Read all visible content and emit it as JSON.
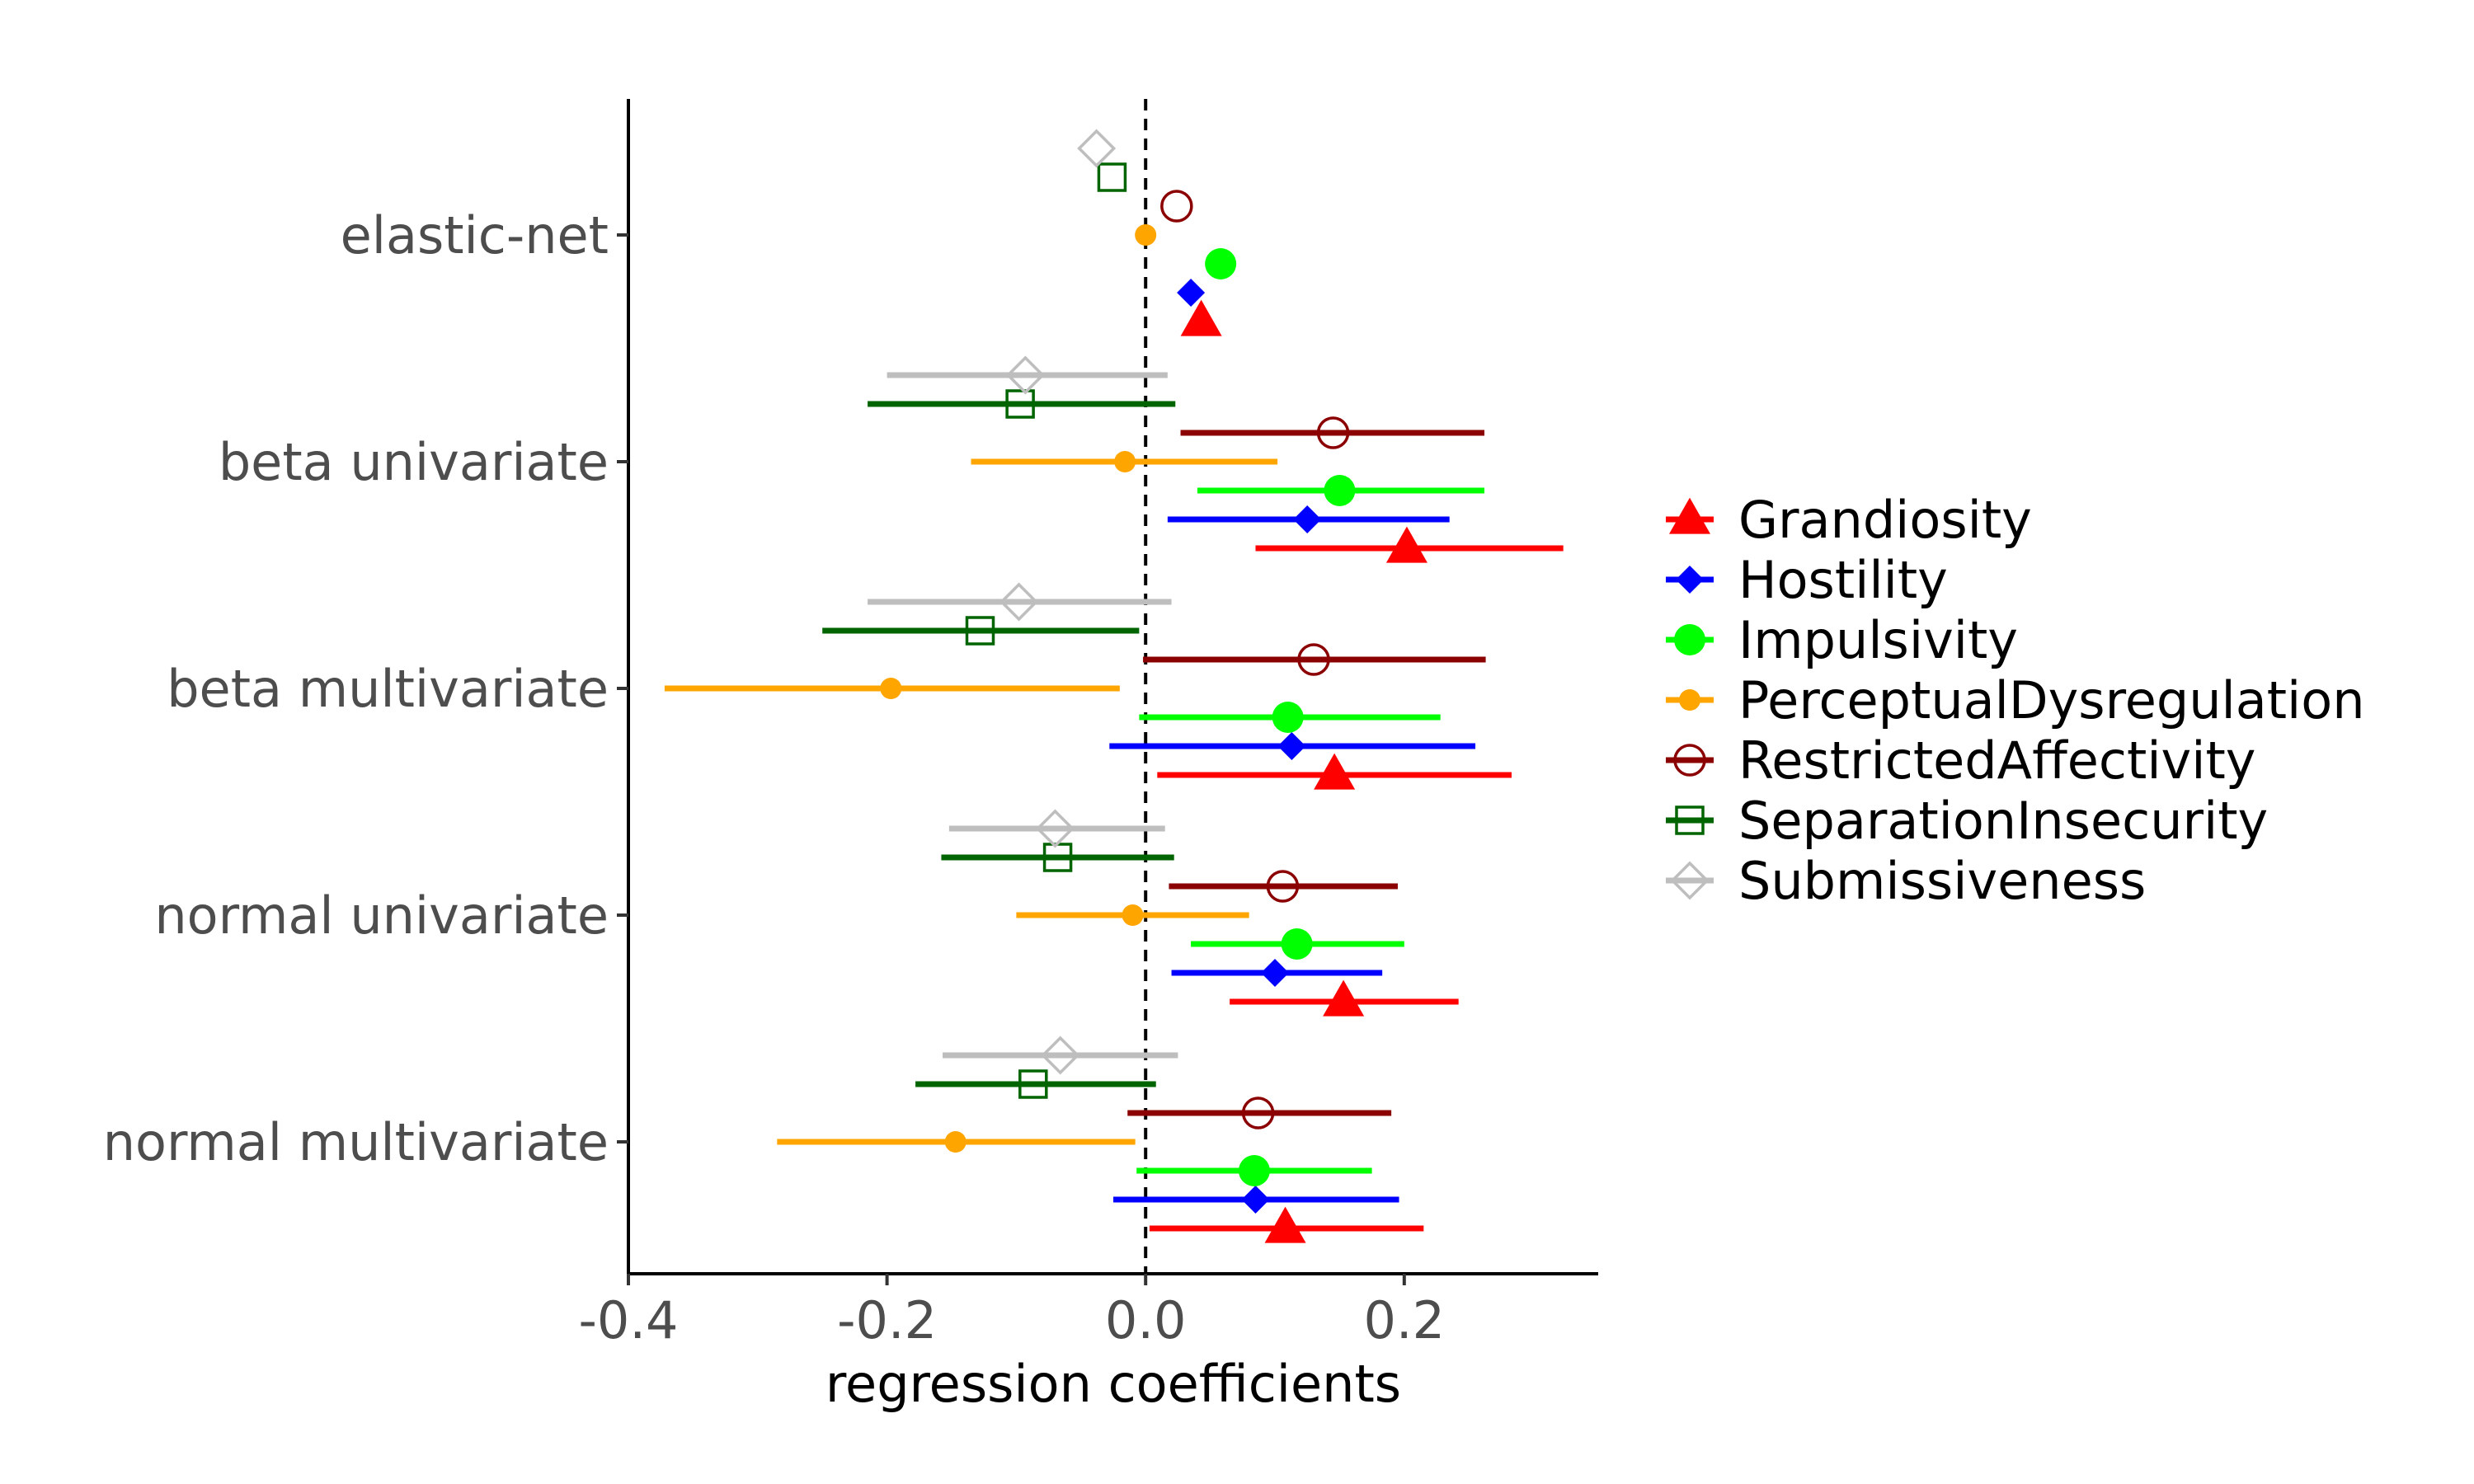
{
  "chart_data": {
    "type": "forest",
    "xlabel": "regression coefficients",
    "ylabel": "",
    "xlim": [
      -0.4,
      0.35
    ],
    "xticks": [
      -0.4,
      -0.2,
      0.0,
      0.2
    ],
    "xtick_labels": [
      "-0.4",
      "-0.2",
      "0.0",
      "0.2"
    ],
    "reference_line": 0,
    "grid": false,
    "legend_position": "right",
    "categories": [
      "elastic-net",
      "beta univariate",
      "beta multivariate",
      "normal univariate",
      "normal multivariate"
    ],
    "series": [
      {
        "name": "Grandiosity",
        "color": "#ff0000",
        "marker": "triangle",
        "estimates": [
          0.043,
          0.202,
          0.146,
          0.153,
          0.108
        ],
        "lower": [
          null,
          0.085,
          0.009,
          0.065,
          0.003
        ],
        "upper": [
          null,
          0.323,
          0.283,
          0.242,
          0.215
        ]
      },
      {
        "name": "Hostility",
        "color": "#0000ff",
        "marker": "diamond",
        "estimates": [
          0.035,
          0.125,
          0.113,
          0.1,
          0.085
        ],
        "lower": [
          null,
          0.017,
          -0.028,
          0.02,
          -0.025
        ],
        "upper": [
          null,
          0.235,
          0.255,
          0.183,
          0.196
        ]
      },
      {
        "name": "Impulsivity",
        "color": "#00ff00",
        "marker": "circle",
        "estimates": [
          0.058,
          0.15,
          0.11,
          0.117,
          0.084
        ],
        "lower": [
          null,
          0.04,
          -0.005,
          0.035,
          -0.007
        ],
        "upper": [
          null,
          0.262,
          0.228,
          0.2,
          0.175
        ]
      },
      {
        "name": "PerceptualDysregulation",
        "color": "#ffa500",
        "marker": "circle-small",
        "estimates": [
          0.0,
          -0.016,
          -0.197,
          -0.01,
          -0.147
        ],
        "lower": [
          null,
          -0.135,
          -0.372,
          -0.1,
          -0.285
        ],
        "upper": [
          null,
          0.102,
          -0.02,
          0.08,
          -0.008
        ]
      },
      {
        "name": "RestrictedAffectivity",
        "color": "#8b0000",
        "marker": "circle-open",
        "estimates": [
          0.024,
          0.145,
          0.13,
          0.106,
          0.087
        ],
        "lower": [
          null,
          0.027,
          -0.002,
          0.018,
          -0.014
        ],
        "upper": [
          null,
          0.262,
          0.263,
          0.195,
          0.19
        ]
      },
      {
        "name": "SeparationInsecurity",
        "color": "#006400",
        "marker": "square-open",
        "estimates": [
          -0.026,
          -0.097,
          -0.128,
          -0.068,
          -0.087
        ],
        "lower": [
          null,
          -0.215,
          -0.25,
          -0.158,
          -0.178
        ],
        "upper": [
          null,
          0.023,
          -0.005,
          0.022,
          0.008
        ]
      },
      {
        "name": "Submissiveness",
        "color": "#bebebe",
        "marker": "diamond-open",
        "estimates": [
          -0.038,
          -0.093,
          -0.098,
          -0.07,
          -0.066
        ],
        "lower": [
          null,
          -0.2,
          -0.215,
          -0.152,
          -0.157
        ],
        "upper": [
          null,
          0.017,
          0.02,
          0.015,
          0.025
        ]
      }
    ]
  }
}
